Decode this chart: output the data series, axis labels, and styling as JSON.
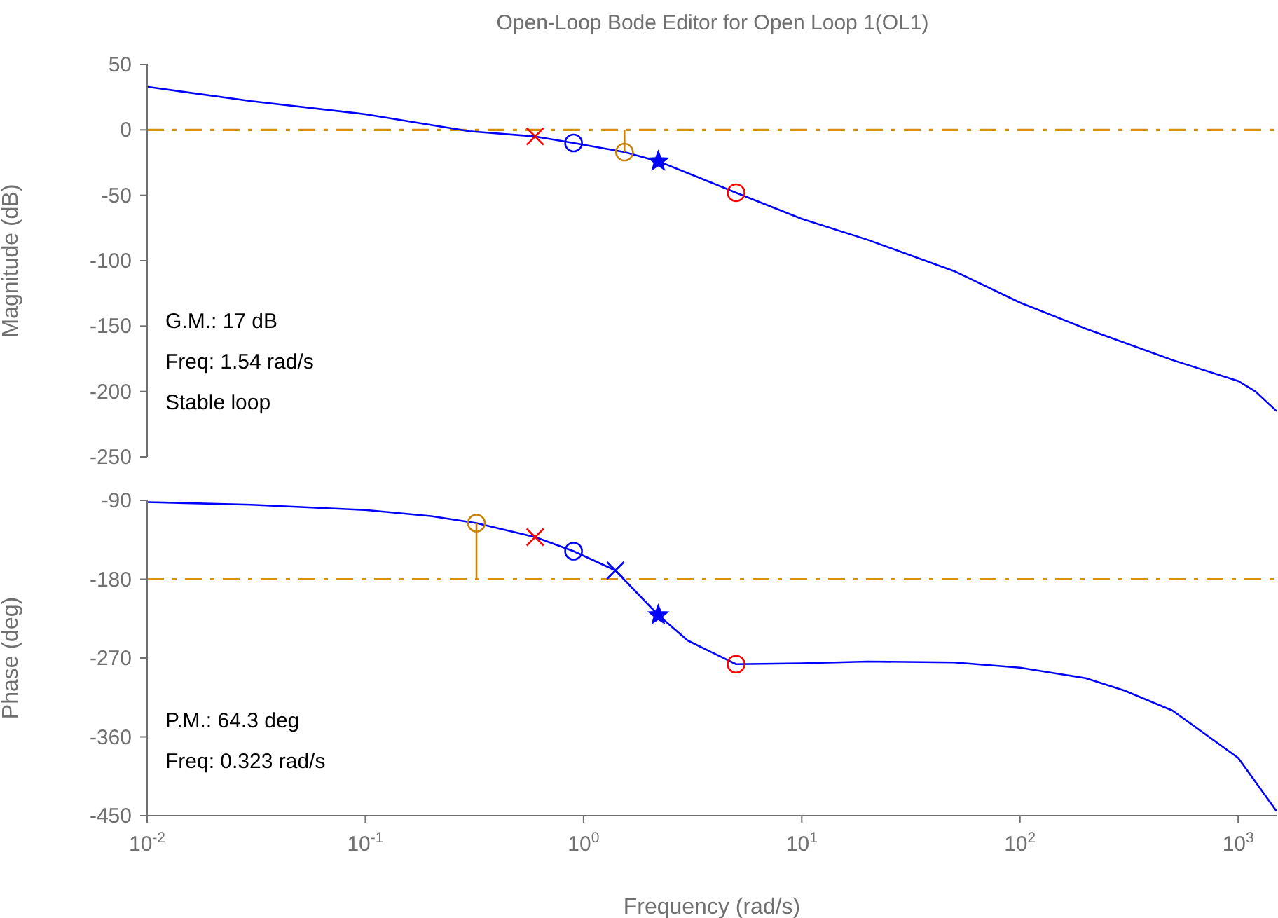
{
  "chart_data": [
    {
      "type": "line",
      "title": "Open-Loop Bode Editor for Open Loop 1(OL1)",
      "ylabel": "Magnitude (dB)",
      "log": "x",
      "grid": false,
      "tick_labels": "y",
      "xlim": [
        0.01,
        1500
      ],
      "xticks": [
        {
          "value": 0.01,
          "label": null
        },
        {
          "value": 0.1,
          "label": null
        },
        {
          "value": 1,
          "label": null
        },
        {
          "value": 10,
          "label": null
        },
        {
          "value": 100,
          "label": null
        },
        {
          "value": 1000,
          "label": null
        }
      ],
      "ylim": [
        -250,
        50
      ],
      "yticks": [
        -250,
        -200,
        -150,
        -100,
        -50,
        0,
        50
      ],
      "ref_lines": [
        {
          "axis": "y",
          "value": 0,
          "color": "#d9900a",
          "line_style": "dashdot"
        }
      ],
      "annotations": [
        "G.M.: 17 dB",
        "Freq: 1.54 rad/s",
        "Stable loop"
      ],
      "series": [
        {
          "color": "#0000ff",
          "x": [
            0.01,
            0.03,
            0.1,
            0.3,
            0.6,
            0.9,
            1.54,
            2.2,
            3,
            5,
            10,
            20,
            50,
            100,
            200,
            500,
            1000,
            1200,
            1500
          ],
          "values": [
            33,
            22,
            12,
            -1,
            -5,
            -10,
            -17,
            -24,
            -33,
            -48,
            -68,
            -84,
            -108,
            -132,
            -152,
            -176,
            -192,
            -200,
            -215
          ]
        },
        {
          "type": "scatter",
          "marker": "cross",
          "color": "#ff0000",
          "x": [
            0.6
          ],
          "values": [
            -5
          ]
        },
        {
          "type": "scatter",
          "marker": "circle",
          "color": "#0000ff",
          "x": [
            0.9
          ],
          "values": [
            -10
          ]
        },
        {
          "type": "scatter",
          "marker": "star",
          "color": "#0000ff",
          "x": [
            2.2
          ],
          "values": [
            -24
          ]
        },
        {
          "type": "scatter",
          "marker": "circle",
          "color": "#ff0000",
          "x": [
            5
          ],
          "values": [
            -48
          ]
        },
        {
          "type": "line",
          "color": "#c8820a",
          "x": [
            1.54,
            1.54
          ],
          "values": [
            0,
            -17
          ]
        },
        {
          "type": "scatter",
          "marker": "circle",
          "color": "#c8820a",
          "x": [
            1.54
          ],
          "values": [
            -17
          ]
        }
      ]
    },
    {
      "type": "line",
      "ylabel": "Phase (deg)",
      "xlabel": "Frequency (rad/s)",
      "log": "x",
      "grid": false,
      "xlim": [
        0.01,
        1500
      ],
      "xticks": [
        {
          "value": 0.01,
          "label": "10$^{-2}$"
        },
        {
          "value": 0.1,
          "label": "10$^{-1}$"
        },
        {
          "value": 1,
          "label": "10$^{0}$"
        },
        {
          "value": 10,
          "label": "10$^{1}$"
        },
        {
          "value": 100,
          "label": "10$^{2}$"
        },
        {
          "value": 1000,
          "label": "10$^{3}$"
        }
      ],
      "ylim": [
        -450,
        -90
      ],
      "yticks": [
        -450,
        -360,
        -270,
        -180,
        -90
      ],
      "ref_lines": [
        {
          "axis": "y",
          "value": -180,
          "color": "#d9900a",
          "line_style": "dashdot"
        }
      ],
      "annotations": [
        "P.M.: 64.3 deg",
        "Freq: 0.323 rad/s"
      ],
      "series": [
        {
          "color": "#0000ff",
          "x": [
            0.01,
            0.03,
            0.1,
            0.2,
            0.323,
            0.6,
            0.9,
            1.4,
            2.2,
            3,
            5,
            10,
            20,
            50,
            100,
            200,
            300,
            500,
            1000,
            1500
          ],
          "values": [
            -92,
            -95,
            -101,
            -108,
            -116,
            -132,
            -148,
            -170,
            -221,
            -250,
            -277,
            -276,
            -274,
            -275,
            -281,
            -293,
            -307,
            -330,
            -384,
            -445
          ]
        },
        {
          "type": "scatter",
          "marker": "cross",
          "color": "#ff0000",
          "x": [
            0.6
          ],
          "values": [
            -132
          ]
        },
        {
          "type": "scatter",
          "marker": "circle",
          "color": "#0000ff",
          "x": [
            0.9
          ],
          "values": [
            -148
          ]
        },
        {
          "type": "scatter",
          "marker": "cross",
          "color": "#0000ff",
          "x": [
            1.4
          ],
          "values": [
            -170
          ]
        },
        {
          "type": "scatter",
          "marker": "star",
          "color": "#0000ff",
          "x": [
            2.2
          ],
          "values": [
            -221
          ]
        },
        {
          "type": "scatter",
          "marker": "circle",
          "color": "#ff0000",
          "x": [
            5
          ],
          "values": [
            -277
          ]
        },
        {
          "type": "line",
          "color": "#c8820a",
          "x": [
            0.323,
            0.323
          ],
          "values": [
            -180,
            -116
          ]
        },
        {
          "type": "scatter",
          "marker": "circle",
          "color": "#c8820a",
          "x": [
            0.323
          ],
          "values": [
            -116
          ]
        }
      ]
    }
  ]
}
